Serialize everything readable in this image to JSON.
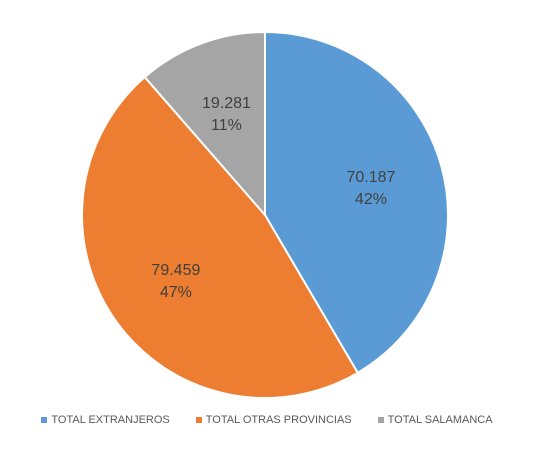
{
  "chart_data": {
    "type": "pie",
    "title": "",
    "slices": [
      {
        "name": "TOTAL EXTRANJEROS",
        "value": 70187,
        "value_label": "70.187",
        "percent_label": "42%",
        "color": "#5b9bd5"
      },
      {
        "name": "TOTAL OTRAS PROVINCIAS",
        "value": 79459,
        "value_label": "79.459",
        "percent_label": "47%",
        "color": "#ed7d31"
      },
      {
        "name": "TOTAL SALAMANCA",
        "value": 19281,
        "value_label": "19.281",
        "percent_label": "11%",
        "color": "#a5a5a5"
      }
    ],
    "legend_position": "bottom"
  }
}
